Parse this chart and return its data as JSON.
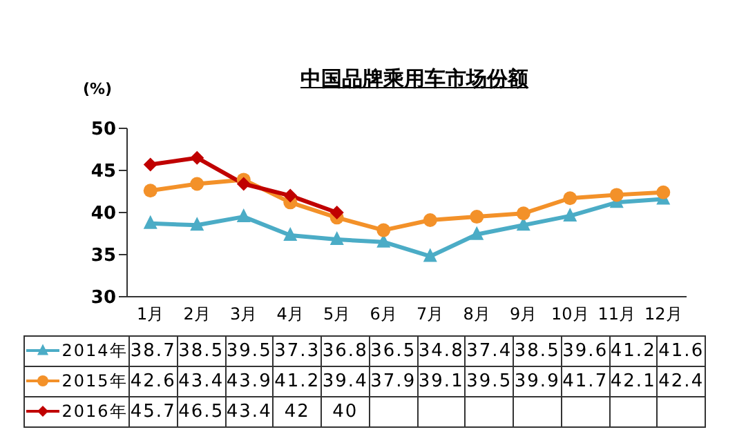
{
  "chart_data": {
    "type": "line",
    "title": "中国品牌乘用车市场份额",
    "ylabel": "(%)",
    "categories": [
      "1月",
      "2月",
      "3月",
      "4月",
      "5月",
      "6月",
      "7月",
      "8月",
      "9月",
      "10月",
      "11月",
      "12月"
    ],
    "series": [
      {
        "name": "2014年",
        "color": "#4bacc6",
        "marker": "triangle",
        "values": [
          38.7,
          38.5,
          39.5,
          37.3,
          36.8,
          36.5,
          34.8,
          37.4,
          38.5,
          39.6,
          41.2,
          41.6
        ]
      },
      {
        "name": "2015年",
        "color": "#f39129",
        "marker": "circle",
        "values": [
          42.6,
          43.4,
          43.9,
          41.2,
          39.4,
          37.9,
          39.1,
          39.5,
          39.9,
          41.7,
          42.1,
          42.4
        ]
      },
      {
        "name": "2016年",
        "color": "#c00000",
        "marker": "diamond",
        "values": [
          45.7,
          46.5,
          43.4,
          42,
          40,
          null,
          null,
          null,
          null,
          null,
          null,
          null
        ]
      }
    ],
    "ylim": [
      30,
      50
    ],
    "yticks": [
      30,
      35,
      40,
      45,
      50
    ],
    "grid": false,
    "legend": "bottom",
    "data_labels": true
  }
}
